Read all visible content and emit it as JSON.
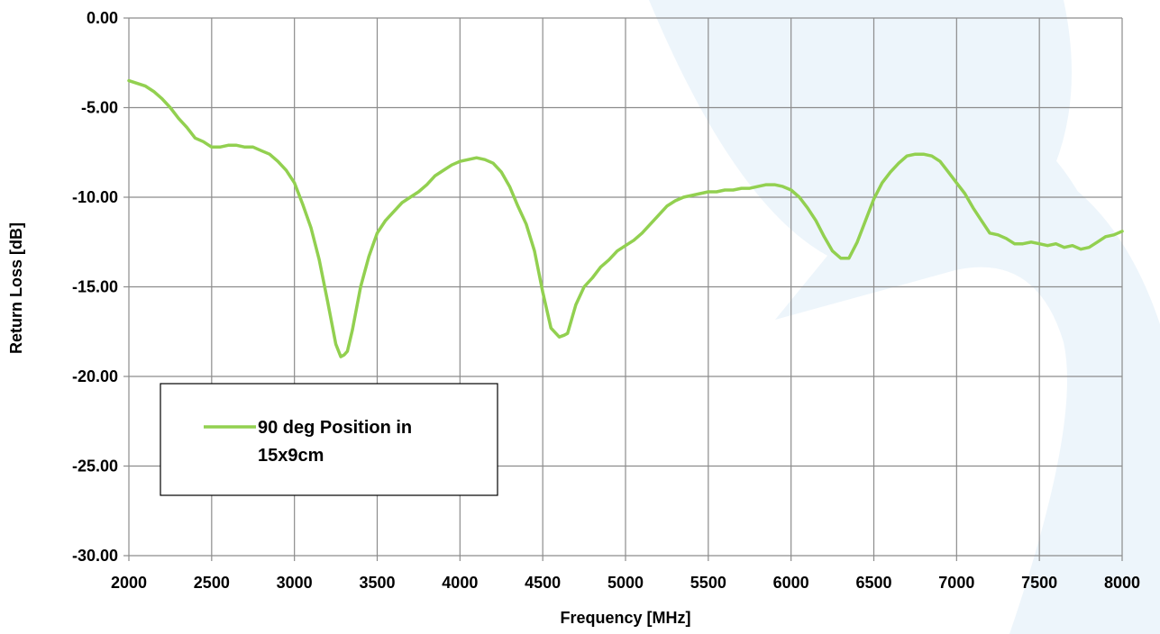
{
  "chart_data": {
    "type": "line",
    "title": "",
    "xlabel": "Frequency [MHz]",
    "ylabel": "Return Loss [dB]",
    "xlim": [
      2000,
      8000
    ],
    "ylim": [
      -30,
      0
    ],
    "x_ticks": [
      2000,
      2500,
      3000,
      3500,
      4000,
      4500,
      5000,
      5500,
      6000,
      6500,
      7000,
      7500,
      8000
    ],
    "x_tick_labels": [
      "2000",
      "2500",
      "3000",
      "3500",
      "4000",
      "4500",
      "5000",
      "5500",
      "6000",
      "6500",
      "7000",
      "7500",
      "8000"
    ],
    "y_ticks": [
      0,
      -5,
      -10,
      -15,
      -20,
      -25,
      -30
    ],
    "y_tick_labels": [
      "0.00",
      "-5.00",
      "-10.00",
      "-15.00",
      "-20.00",
      "-25.00",
      "-30.00"
    ],
    "grid": true,
    "legend_position": "bottom-left",
    "series": [
      {
        "name": "90 deg Position in 15x9cm",
        "color": "#92d050",
        "x": [
          2000,
          2100,
          2150,
          2200,
          2250,
          2300,
          2350,
          2400,
          2450,
          2500,
          2550,
          2600,
          2650,
          2700,
          2750,
          2800,
          2850,
          2900,
          2950,
          3000,
          3050,
          3100,
          3150,
          3200,
          3250,
          3280,
          3300,
          3320,
          3350,
          3400,
          3450,
          3500,
          3550,
          3600,
          3650,
          3700,
          3750,
          3800,
          3850,
          3900,
          3950,
          4000,
          4050,
          4100,
          4150,
          4200,
          4250,
          4300,
          4350,
          4400,
          4450,
          4500,
          4550,
          4600,
          4630,
          4650,
          4700,
          4750,
          4800,
          4850,
          4900,
          4950,
          5000,
          5050,
          5100,
          5150,
          5200,
          5250,
          5300,
          5350,
          5400,
          5450,
          5500,
          5550,
          5600,
          5650,
          5700,
          5750,
          5800,
          5850,
          5900,
          5950,
          6000,
          6050,
          6100,
          6150,
          6200,
          6250,
          6300,
          6350,
          6400,
          6450,
          6500,
          6550,
          6600,
          6650,
          6700,
          6750,
          6800,
          6850,
          6900,
          6950,
          7000,
          7050,
          7100,
          7150,
          7200,
          7250,
          7300,
          7350,
          7400,
          7450,
          7500,
          7550,
          7600,
          7650,
          7700,
          7750,
          7800,
          7850,
          7900,
          7950,
          8000
        ],
        "values": [
          -3.5,
          -3.8,
          -4.1,
          -4.5,
          -5.0,
          -5.6,
          -6.1,
          -6.7,
          -6.9,
          -7.2,
          -7.2,
          -7.1,
          -7.1,
          -7.2,
          -7.2,
          -7.4,
          -7.6,
          -8.0,
          -8.5,
          -9.2,
          -10.4,
          -11.7,
          -13.5,
          -15.8,
          -18.2,
          -18.9,
          -18.8,
          -18.6,
          -17.4,
          -15.0,
          -13.3,
          -12.0,
          -11.3,
          -10.8,
          -10.3,
          -10.0,
          -9.7,
          -9.3,
          -8.8,
          -8.5,
          -8.2,
          -8.0,
          -7.9,
          -7.8,
          -7.9,
          -8.1,
          -8.6,
          -9.4,
          -10.5,
          -11.5,
          -13.0,
          -15.3,
          -17.3,
          -17.8,
          -17.7,
          -17.6,
          -16.0,
          -15.0,
          -14.5,
          -13.9,
          -13.5,
          -13.0,
          -12.7,
          -12.4,
          -12.0,
          -11.5,
          -11.0,
          -10.5,
          -10.2,
          -10.0,
          -9.9,
          -9.8,
          -9.7,
          -9.7,
          -9.6,
          -9.6,
          -9.5,
          -9.5,
          -9.4,
          -9.3,
          -9.3,
          -9.4,
          -9.6,
          -10.0,
          -10.6,
          -11.3,
          -12.2,
          -13.0,
          -13.4,
          -13.4,
          -12.5,
          -11.3,
          -10.1,
          -9.2,
          -8.6,
          -8.1,
          -7.7,
          -7.6,
          -7.6,
          -7.7,
          -8.0,
          -8.6,
          -9.2,
          -9.8,
          -10.6,
          -11.3,
          -12.0,
          -12.1,
          -12.3,
          -12.6,
          -12.6,
          -12.5,
          -12.6,
          -12.7,
          -12.6,
          -12.8,
          -12.7,
          -12.9,
          -12.8,
          -12.5,
          -12.2,
          -12.1,
          -11.9
        ]
      }
    ]
  },
  "legend": {
    "line1": "90 deg Position in",
    "line2": "15x9cm"
  }
}
